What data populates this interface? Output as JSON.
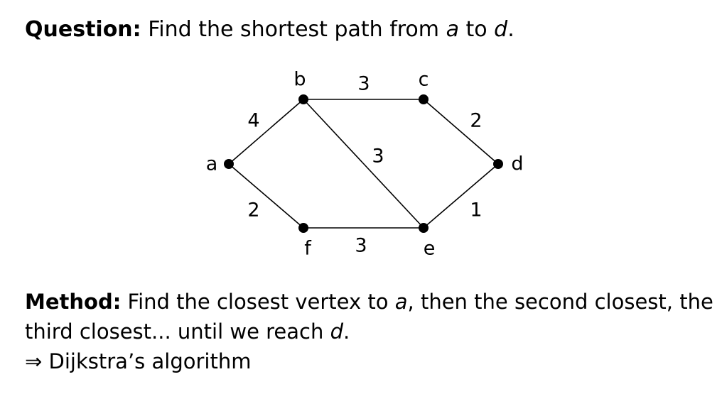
{
  "question": {
    "label": "Question:",
    "text_before": "Find the shortest path from",
    "source": "a",
    "text_middle": "to",
    "target": "d",
    "text_end": "."
  },
  "graph": {
    "edge_color": "#000000",
    "node_color": "#000000",
    "nodes": [
      {
        "id": "a",
        "label": "a"
      },
      {
        "id": "b",
        "label": "b"
      },
      {
        "id": "c",
        "label": "c"
      },
      {
        "id": "d",
        "label": "d"
      },
      {
        "id": "e",
        "label": "e"
      },
      {
        "id": "f",
        "label": "f"
      }
    ],
    "edges": [
      {
        "from": "a",
        "to": "b",
        "weight": "4"
      },
      {
        "from": "b",
        "to": "c",
        "weight": "3"
      },
      {
        "from": "c",
        "to": "d",
        "weight": "2"
      },
      {
        "from": "b",
        "to": "e",
        "weight": "3"
      },
      {
        "from": "a",
        "to": "f",
        "weight": "2"
      },
      {
        "from": "f",
        "to": "e",
        "weight": "3"
      },
      {
        "from": "e",
        "to": "d",
        "weight": "1"
      }
    ]
  },
  "method": {
    "label": "Method:",
    "text_1": "Find the closest vertex to",
    "vertex": "a",
    "text_2": ", then the second closest, the",
    "text_3": "third closest... until we reach",
    "target": "d",
    "text_4": ".",
    "arrow": "⇒",
    "conclusion": "Dijkstra’s algorithm"
  }
}
